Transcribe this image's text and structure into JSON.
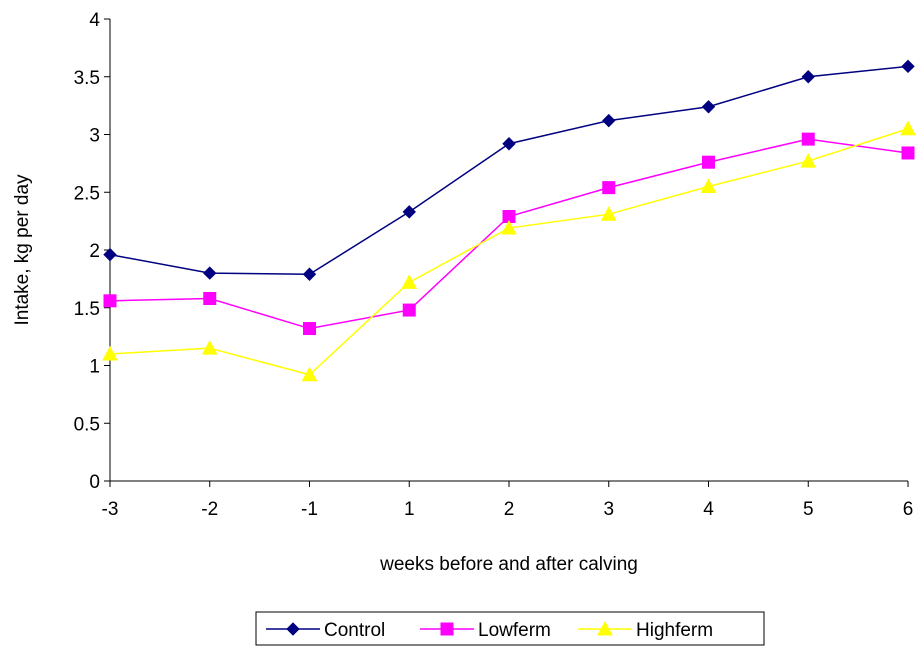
{
  "chart_data": {
    "type": "line",
    "categories": [
      "-3",
      "-2",
      "-1",
      "1",
      "2",
      "3",
      "4",
      "5",
      "6"
    ],
    "series": [
      {
        "name": "Control",
        "color": "#000080",
        "marker": "diamond",
        "values": [
          1.96,
          1.8,
          1.79,
          2.33,
          2.92,
          3.12,
          3.24,
          3.5,
          3.59
        ]
      },
      {
        "name": "Lowferm",
        "color": "#ff00ff",
        "marker": "square",
        "values": [
          1.56,
          1.58,
          1.32,
          1.48,
          2.29,
          2.54,
          2.76,
          2.96,
          2.84
        ]
      },
      {
        "name": "Highferm",
        "color": "#ffff00",
        "marker": "triangle",
        "values": [
          1.1,
          1.15,
          0.92,
          1.72,
          2.19,
          2.31,
          2.55,
          2.77,
          3.05
        ]
      }
    ],
    "title": "",
    "xlabel": "weeks before and after calving",
    "ylabel": "Intake, kg per day",
    "ylim": [
      0,
      4
    ],
    "yticks": [
      "0",
      "0.5",
      "1",
      "1.5",
      "2",
      "2.5",
      "3",
      "3.5",
      "4"
    ],
    "grid": false,
    "legend": "bottom-center"
  }
}
